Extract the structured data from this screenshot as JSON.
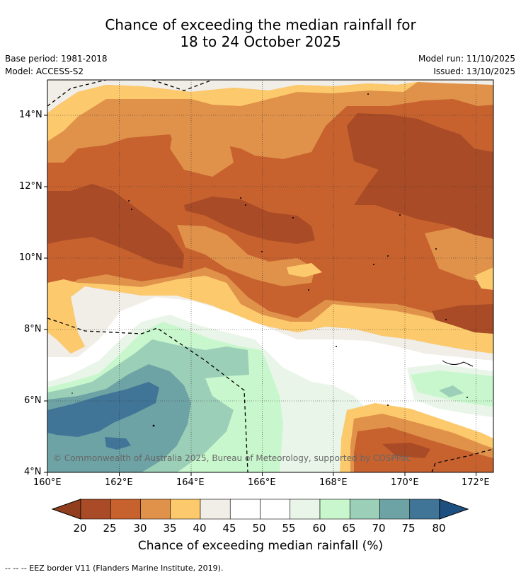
{
  "title": {
    "line1": "Chance of exceeding the median rainfall for",
    "line2": "18 to 24 October 2025"
  },
  "meta": {
    "base_period": "Base period: 1981-2018",
    "model": "Model: ACCESS-S2",
    "model_run": "Model run: 11/10/2025",
    "issued": "Issued: 13/10/2025"
  },
  "axes": {
    "lat_ticks": [
      "14°N",
      "12°N",
      "10°N",
      "8°N",
      "6°N",
      "4°N"
    ],
    "lon_ticks": [
      "160°E",
      "162°E",
      "164°E",
      "166°E",
      "168°E",
      "170°E",
      "172°E"
    ],
    "lat_range": [
      4,
      14.9
    ],
    "lon_range": [
      160,
      172.5
    ]
  },
  "colorbar": {
    "label": "Chance of exceeding median rainfall (%)",
    "ticks": [
      "20",
      "25",
      "30",
      "35",
      "40",
      "45",
      "50",
      "55",
      "60",
      "65",
      "70",
      "75",
      "80"
    ],
    "colors": [
      "#a94b26",
      "#c7622f",
      "#e0924a",
      "#fcca6c",
      "#f1ede7",
      "#ffffff",
      "#ffffff",
      "#e9f5e8",
      "#c9f7cd",
      "#9ccfb7",
      "#6ea3a5",
      "#417597"
    ],
    "under_color": "#913e1f",
    "over_color": "#1d5081"
  },
  "copyright": "© Commonwealth of Australia 2025, Bureau of Meteorology, supported by COSPPac",
  "footer": "-- -- -- EEZ border V11 (Flanders Marine Institute, 2019)."
}
